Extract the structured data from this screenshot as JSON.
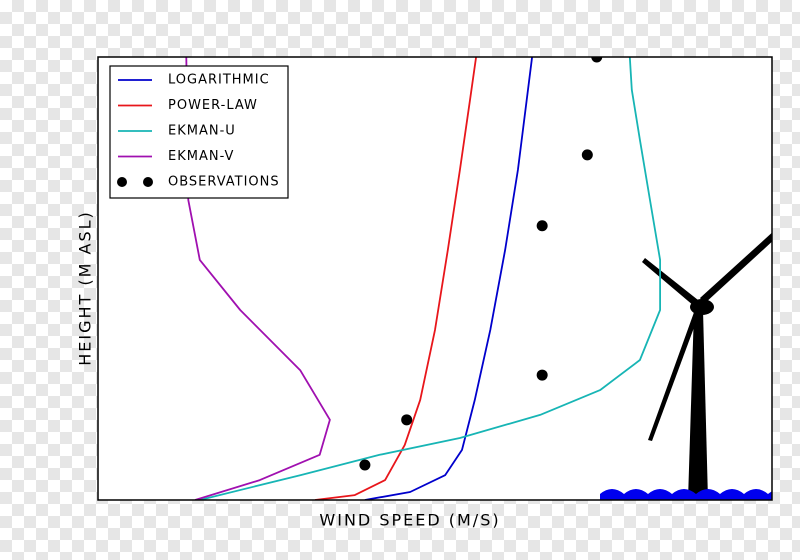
{
  "chart_data": {
    "type": "line",
    "xlabel": "WIND SPEED (M/S)",
    "ylabel": "HEIGHT (M ASL)",
    "xlim": [
      0,
      100
    ],
    "ylim": [
      0,
      100
    ],
    "legend": "upper left",
    "series": [
      {
        "name": "LOGARITHMIC",
        "color": "#0000cc",
        "type": "line",
        "x": [
          39.6,
          46.3,
          51.5,
          54.0,
          55.9,
          58.2,
          60.4,
          62.3,
          63.6,
          64.4
        ],
        "values": [
          0,
          1.8,
          5.6,
          11.3,
          22.6,
          38.4,
          56.4,
          74.5,
          90.3,
          100
        ]
      },
      {
        "name": "POWER-LAW",
        "color": "#e8161b",
        "type": "line",
        "x": [
          32.2,
          38.1,
          42.6,
          45.5,
          47.8,
          50.0,
          51.9,
          53.7,
          55.2,
          56.1
        ],
        "values": [
          0,
          1.1,
          4.5,
          12.4,
          22.6,
          38.4,
          56.4,
          74.5,
          90.3,
          100
        ]
      },
      {
        "name": "EKMAN-U",
        "color": "#17b5b5",
        "type": "line",
        "x": [
          15.1,
          30.0,
          41.8,
          53.7,
          65.6,
          74.5,
          80.4,
          83.4,
          83.4,
          81.9,
          80.4,
          79.2,
          78.9
        ],
        "values": [
          0,
          5.6,
          10.2,
          14.0,
          19.2,
          24.8,
          31.6,
          42.9,
          54.2,
          67.7,
          81.3,
          92.6,
          100
        ]
      },
      {
        "name": "EKMAN-V",
        "color": "#a010b0",
        "type": "line",
        "x": [
          14.4,
          24.0,
          32.9,
          34.4,
          30.0,
          21.1,
          15.1,
          13.4,
          13.1
        ],
        "values": [
          0,
          4.5,
          10.2,
          18.1,
          29.3,
          42.9,
          54.2,
          67.7,
          100
        ]
      },
      {
        "name": "OBSERVATIONS",
        "color": "#000000",
        "type": "scatter",
        "x": [
          39.6,
          45.8,
          65.9,
          65.9,
          72.6,
          74.0
        ],
        "values": [
          7.9,
          18.1,
          28.2,
          61.9,
          77.9,
          100
        ]
      }
    ]
  }
}
